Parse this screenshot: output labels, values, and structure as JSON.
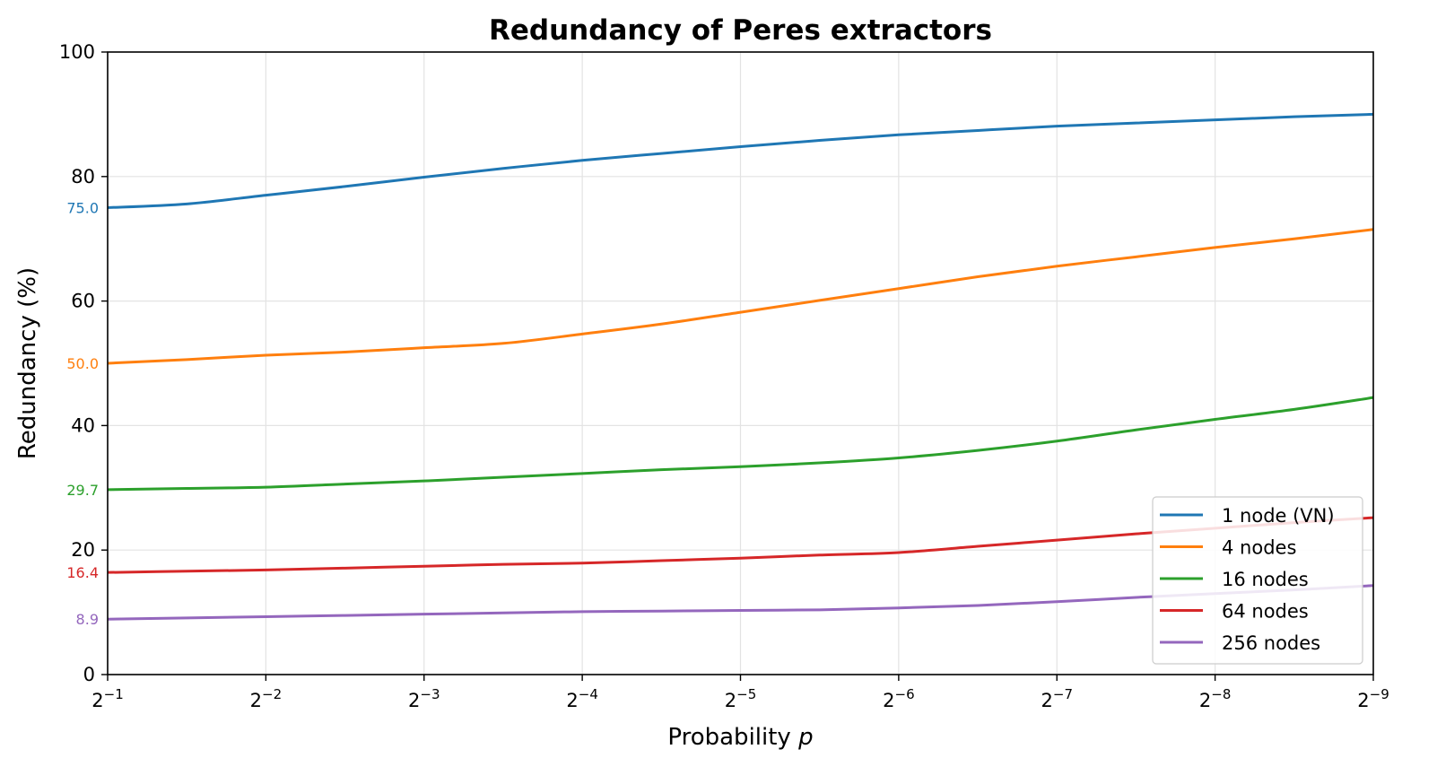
{
  "chart_data": {
    "type": "line",
    "title": "Redundancy of Peres extractors",
    "xlabel": "Probability ",
    "xlabel_italic": "p",
    "ylabel": "Redundancy (%)",
    "xlim": [
      1,
      9
    ],
    "x_tick_prefix": "2",
    "x_ticks": [
      {
        "base": "2",
        "exp": "−1"
      },
      {
        "base": "2",
        "exp": "−2"
      },
      {
        "base": "2",
        "exp": "−3"
      },
      {
        "base": "2",
        "exp": "−4"
      },
      {
        "base": "2",
        "exp": "−5"
      },
      {
        "base": "2",
        "exp": "−6"
      },
      {
        "base": "2",
        "exp": "−7"
      },
      {
        "base": "2",
        "exp": "−8"
      },
      {
        "base": "2",
        "exp": "−9"
      }
    ],
    "x_tick_values": [
      1,
      2,
      3,
      4,
      5,
      6,
      7,
      8,
      9
    ],
    "ylim": [
      0,
      100
    ],
    "y_ticks": [
      "0",
      "20",
      "40",
      "60",
      "80",
      "100"
    ],
    "y_tick_values": [
      0,
      20,
      40,
      60,
      80,
      100
    ],
    "grid": true,
    "legend_position": "bottom-right",
    "x_scale_note": "x values are k where p = 2^-k",
    "series": [
      {
        "name": "1 node (VN)",
        "color": "#1f77b4",
        "start_label": "75.0",
        "x": [
          1,
          1.5,
          2,
          2.5,
          3,
          3.5,
          4,
          4.5,
          5,
          5.5,
          6,
          6.5,
          7,
          7.5,
          8,
          8.5,
          9
        ],
        "values": [
          75.0,
          75.6,
          77.0,
          78.4,
          79.9,
          81.3,
          82.6,
          83.7,
          84.8,
          85.8,
          86.7,
          87.4,
          88.1,
          88.6,
          89.1,
          89.6,
          90.0
        ]
      },
      {
        "name": "4 nodes",
        "color": "#ff7f0e",
        "start_label": "50.0",
        "x": [
          1,
          1.5,
          2,
          2.5,
          3,
          3.5,
          4,
          4.5,
          5,
          5.5,
          6,
          6.5,
          7,
          7.5,
          8,
          8.5,
          9
        ],
        "values": [
          50.0,
          50.6,
          51.3,
          51.8,
          52.5,
          53.2,
          54.7,
          56.3,
          58.2,
          60.1,
          62.0,
          63.9,
          65.6,
          67.1,
          68.6,
          70.0,
          71.5
        ]
      },
      {
        "name": "16 nodes",
        "color": "#2ca02c",
        "start_label": "29.7",
        "x": [
          1,
          1.5,
          2,
          2.5,
          3,
          3.5,
          4,
          4.5,
          5,
          5.5,
          6,
          6.5,
          7,
          7.5,
          8,
          8.5,
          9
        ],
        "values": [
          29.7,
          29.9,
          30.1,
          30.6,
          31.1,
          31.7,
          32.3,
          32.9,
          33.4,
          34.0,
          34.8,
          36.0,
          37.5,
          39.3,
          41.0,
          42.6,
          44.5
        ]
      },
      {
        "name": "64 nodes",
        "color": "#d62728",
        "start_label": "16.4",
        "x": [
          1,
          1.5,
          2,
          2.5,
          3,
          3.5,
          4,
          4.5,
          5,
          5.5,
          6,
          6.5,
          7,
          7.5,
          8,
          8.5,
          9
        ],
        "values": [
          16.4,
          16.6,
          16.8,
          17.1,
          17.4,
          17.7,
          17.9,
          18.3,
          18.7,
          19.2,
          19.6,
          20.6,
          21.6,
          22.6,
          23.5,
          24.4,
          25.2
        ]
      },
      {
        "name": "256 nodes",
        "color": "#9467bd",
        "start_label": "8.9",
        "x": [
          1,
          1.5,
          2,
          2.5,
          3,
          3.5,
          4,
          4.5,
          5,
          5.5,
          6,
          6.5,
          7,
          7.5,
          8,
          8.5,
          9
        ],
        "values": [
          8.9,
          9.1,
          9.3,
          9.5,
          9.7,
          9.9,
          10.1,
          10.2,
          10.3,
          10.4,
          10.7,
          11.1,
          11.7,
          12.4,
          13.0,
          13.6,
          14.3
        ]
      }
    ]
  }
}
